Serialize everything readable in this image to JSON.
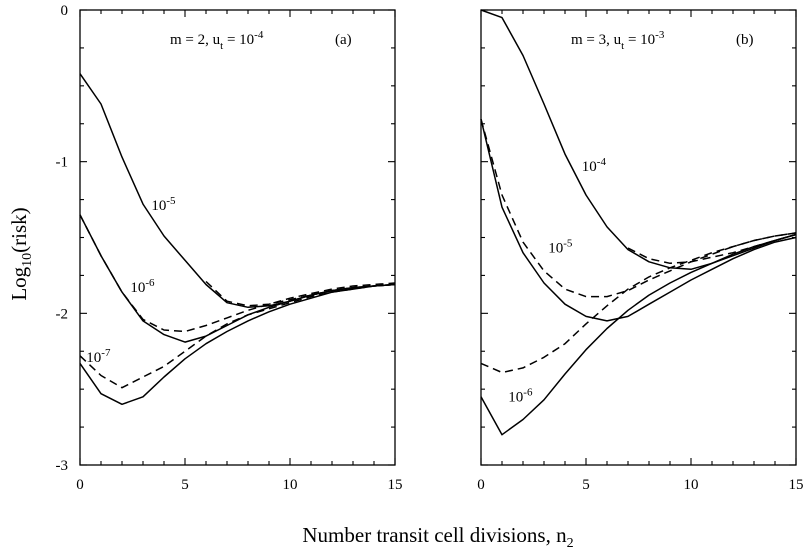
{
  "axes": {
    "ylabel_main": "Log",
    "ylabel_sub": "10",
    "ylabel_tail": "(risk)",
    "xlabel_main": "Number transit cell divisions, n",
    "xlabel_sub": "2"
  },
  "chart_data": [
    {
      "type": "line",
      "panel": "(a)",
      "title": {
        "m": "m = 2,",
        "u": "u",
        "u_sub": "t",
        "eq": " = 10",
        "exp": "-4"
      },
      "xlim": [
        0,
        15
      ],
      "ylim": [
        -3,
        0
      ],
      "xticks": [
        0,
        5,
        10,
        15
      ],
      "yticks": [
        0,
        -1,
        -2,
        -3
      ],
      "series": [
        {
          "name": "10^-5",
          "style": "solid",
          "x": [
            0,
            1,
            2,
            3,
            4,
            5,
            6,
            7,
            8,
            9,
            10,
            11,
            12,
            13,
            14,
            15
          ],
          "y": [
            -0.42,
            -0.62,
            -0.97,
            -1.28,
            -1.49,
            -1.65,
            -1.81,
            -1.93,
            -1.96,
            -1.95,
            -1.92,
            -1.88,
            -1.85,
            -1.83,
            -1.82,
            -1.81
          ]
        },
        {
          "name": "10^-5",
          "style": "dashed",
          "x": [
            6,
            7,
            8,
            9,
            10,
            11,
            12,
            13,
            14,
            15
          ],
          "y": [
            -1.79,
            -1.92,
            -1.95,
            -1.94,
            -1.91,
            -1.88,
            -1.85,
            -1.83,
            -1.82,
            -1.81
          ]
        },
        {
          "name": "10^-6",
          "style": "solid",
          "x": [
            0,
            1,
            2,
            3,
            4,
            5,
            6,
            7,
            8,
            9,
            10,
            11,
            12,
            13,
            14,
            15
          ],
          "y": [
            -1.35,
            -1.62,
            -1.86,
            -2.05,
            -2.14,
            -2.19,
            -2.15,
            -2.08,
            -2.01,
            -1.96,
            -1.92,
            -1.88,
            -1.85,
            -1.83,
            -1.82,
            -1.81
          ]
        },
        {
          "name": "10^-6",
          "style": "dashed",
          "x": [
            0,
            1,
            2,
            3,
            4,
            5,
            6,
            7,
            8,
            9,
            10,
            11,
            12,
            13,
            14,
            15
          ],
          "y": [
            -1.35,
            -1.62,
            -1.86,
            -2.04,
            -2.11,
            -2.12,
            -2.08,
            -2.03,
            -1.98,
            -1.94,
            -1.9,
            -1.87,
            -1.84,
            -1.82,
            -1.81,
            -1.8
          ]
        },
        {
          "name": "10^-7",
          "style": "solid",
          "x": [
            0,
            1,
            2,
            3,
            4,
            5,
            6,
            7,
            8,
            9,
            10,
            11,
            12,
            13,
            14,
            15
          ],
          "y": [
            -2.33,
            -2.53,
            -2.6,
            -2.55,
            -2.42,
            -2.3,
            -2.2,
            -2.12,
            -2.05,
            -1.99,
            -1.94,
            -1.9,
            -1.86,
            -1.84,
            -1.82,
            -1.81
          ]
        },
        {
          "name": "10^-7",
          "style": "dashed",
          "x": [
            0,
            1,
            2,
            3,
            4,
            5,
            6,
            7,
            8,
            9,
            10,
            11,
            12,
            13,
            14,
            15
          ],
          "y": [
            -2.28,
            -2.41,
            -2.49,
            -2.42,
            -2.35,
            -2.25,
            -2.15,
            -2.07,
            -2.01,
            -1.97,
            -1.93,
            -1.89,
            -1.86,
            -1.84,
            -1.82,
            -1.81
          ]
        }
      ],
      "annotations": [
        {
          "base": "10",
          "exp": "-5",
          "x": 3.4,
          "y": -1.32
        },
        {
          "base": "10",
          "exp": "-6",
          "x": 2.4,
          "y": -1.86
        },
        {
          "base": "10",
          "exp": "-7",
          "x": 0.3,
          "y": -2.32
        }
      ]
    },
    {
      "type": "line",
      "panel": "(b)",
      "title": {
        "m": "m = 3,",
        "u": "u",
        "u_sub": "t",
        "eq": " = 10",
        "exp": "-3"
      },
      "xlim": [
        0,
        15
      ],
      "ylim": [
        -3,
        0
      ],
      "xticks": [
        0,
        5,
        10,
        15
      ],
      "yticks": [
        0,
        -1,
        -2,
        -3
      ],
      "series": [
        {
          "name": "10^-4",
          "style": "solid",
          "x": [
            0,
            1,
            2,
            3,
            4,
            5,
            6,
            7,
            8,
            9,
            10,
            11,
            12,
            13,
            14,
            15
          ],
          "y": [
            0.0,
            -0.05,
            -0.3,
            -0.62,
            -0.95,
            -1.22,
            -1.43,
            -1.58,
            -1.66,
            -1.7,
            -1.71,
            -1.67,
            -1.62,
            -1.57,
            -1.52,
            -1.48
          ]
        },
        {
          "name": "10^-4",
          "style": "dashed",
          "x": [
            7,
            8,
            9,
            10,
            11,
            12,
            13,
            14,
            15
          ],
          "y": [
            -1.57,
            -1.64,
            -1.67,
            -1.66,
            -1.63,
            -1.6,
            -1.56,
            -1.52,
            -1.48
          ]
        },
        {
          "name": "10^-5",
          "style": "solid",
          "x": [
            0,
            1,
            2,
            3,
            4,
            5,
            6,
            7,
            8,
            9,
            10,
            11,
            12,
            13,
            14,
            15
          ],
          "y": [
            -0.72,
            -1.3,
            -1.6,
            -1.8,
            -1.94,
            -2.02,
            -2.05,
            -2.02,
            -1.94,
            -1.86,
            -1.78,
            -1.71,
            -1.64,
            -1.58,
            -1.53,
            -1.5
          ]
        },
        {
          "name": "10^-5",
          "style": "dashed",
          "x": [
            0,
            1,
            2,
            3,
            4,
            5,
            6,
            7,
            8,
            9,
            10,
            11,
            12,
            13,
            14,
            15
          ],
          "y": [
            -0.72,
            -1.22,
            -1.53,
            -1.72,
            -1.84,
            -1.89,
            -1.89,
            -1.85,
            -1.78,
            -1.72,
            -1.66,
            -1.61,
            -1.56,
            -1.52,
            -1.49,
            -1.47
          ]
        },
        {
          "name": "10^-6",
          "style": "solid",
          "x": [
            0,
            1,
            2,
            3,
            4,
            5,
            6,
            7,
            8,
            9,
            10,
            11,
            12,
            13,
            14,
            15
          ],
          "y": [
            -2.55,
            -2.8,
            -2.7,
            -2.57,
            -2.4,
            -2.24,
            -2.1,
            -1.98,
            -1.88,
            -1.8,
            -1.73,
            -1.67,
            -1.61,
            -1.56,
            -1.52,
            -1.48
          ]
        },
        {
          "name": "10^-6",
          "style": "dashed",
          "x": [
            0,
            1,
            2,
            3,
            4,
            5,
            6,
            7,
            8,
            9,
            10,
            11,
            12,
            13,
            14,
            15
          ],
          "y": [
            -2.33,
            -2.39,
            -2.36,
            -2.29,
            -2.2,
            -2.07,
            -1.95,
            -1.84,
            -1.76,
            -1.7,
            -1.65,
            -1.6,
            -1.56,
            -1.52,
            -1.49,
            -1.47
          ]
        }
      ],
      "annotations": [
        {
          "base": "10",
          "exp": "-4",
          "x": 4.8,
          "y": -1.06
        },
        {
          "base": "10",
          "exp": "-5",
          "x": 3.2,
          "y": -1.6
        },
        {
          "base": "10",
          "exp": "-6",
          "x": 1.3,
          "y": -2.58
        }
      ]
    }
  ]
}
